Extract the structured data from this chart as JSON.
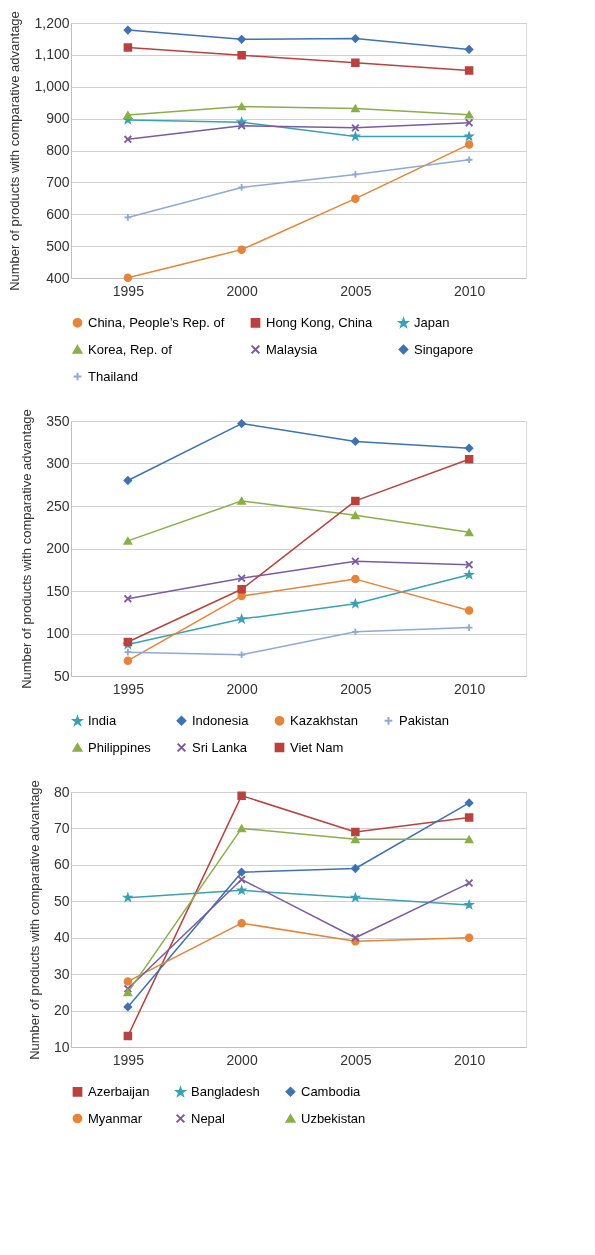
{
  "chart_data": [
    {
      "type": "line",
      "categories": [
        "1995",
        "2000",
        "2005",
        "2010"
      ],
      "ylabel": "Number of products with comparative advantage",
      "ylim": [
        400,
        1200
      ],
      "yticks": [
        400,
        500,
        600,
        700,
        800,
        900,
        {
          "value": 1000,
          "label": "1,000"
        },
        {
          "value": 1100,
          "label": "1,100"
        },
        {
          "value": 1200,
          "label": "1,200"
        }
      ],
      "grid": "y",
      "legend": "bottom",
      "line_style": "solid",
      "series": [
        {
          "name": "China, People’s Rep. of",
          "color": "#e6843a",
          "marker": "circle",
          "values": [
            401,
            489,
            649,
            819
          ]
        },
        {
          "name": "Hong Kong, China",
          "color": "#b84240",
          "marker": "square",
          "values": [
            1123,
            1099,
            1075,
            1051
          ]
        },
        {
          "name": "Japan",
          "color": "#3aa0b4",
          "marker": "star",
          "values": [
            896,
            889,
            844,
            844
          ]
        },
        {
          "name": "Korea, Rep. of",
          "color": "#8aaf4a",
          "marker": "triangle",
          "values": [
            911,
            938,
            932,
            912
          ]
        },
        {
          "name": "Malaysia",
          "color": "#7a5ba0",
          "marker": "cross",
          "values": [
            835,
            878,
            871,
            887
          ]
        },
        {
          "name": "Singapore",
          "color": "#3f72b0",
          "marker": "diamond",
          "values": [
            1178,
            1149,
            1151,
            1117
          ]
        },
        {
          "name": "Thailand",
          "color": "#8fa9d4",
          "marker": "plus",
          "values": [
            590,
            684,
            725,
            771
          ]
        }
      ]
    },
    {
      "type": "line",
      "categories": [
        "1995",
        "2000",
        "2005",
        "2010"
      ],
      "ylabel": "Number of products with comparative advantage",
      "ylim": [
        50,
        350
      ],
      "yticks": [
        50,
        100,
        150,
        200,
        250,
        300,
        350
      ],
      "grid": "y",
      "legend": "bottom",
      "line_style": "solid",
      "series": [
        {
          "name": "India",
          "color": "#3aa0b4",
          "marker": "star",
          "values": [
            87,
            117,
            135,
            169
          ]
        },
        {
          "name": "Indonesia",
          "color": "#3f72b0",
          "marker": "diamond",
          "values": [
            280,
            347,
            326,
            318
          ]
        },
        {
          "name": "Kazakhstan",
          "color": "#e6843a",
          "marker": "circle",
          "values": [
            68,
            144,
            164,
            127
          ]
        },
        {
          "name": "Pakistan",
          "color": "#8fa9d4",
          "marker": "plus",
          "values": [
            78,
            75,
            102,
            107
          ]
        },
        {
          "name": "Philippines",
          "color": "#8aaf4a",
          "marker": "triangle",
          "values": [
            209,
            256,
            239,
            219
          ]
        },
        {
          "name": "Sri Lanka",
          "color": "#7a5ba0",
          "marker": "cross",
          "values": [
            141,
            165,
            185,
            181
          ]
        },
        {
          "name": "Viet Nam",
          "color": "#b84240",
          "marker": "square",
          "values": [
            90,
            152,
            256,
            305
          ]
        }
      ]
    },
    {
      "type": "line",
      "categories": [
        "1995",
        "2000",
        "2005",
        "2010"
      ],
      "ylabel": "Number of products with comparative advantage",
      "ylim": [
        10,
        80
      ],
      "yticks": [
        10,
        20,
        30,
        40,
        50,
        60,
        70,
        80
      ],
      "grid": "y",
      "legend": "bottom",
      "line_style": "solid",
      "series": [
        {
          "name": "Azerbaijan",
          "color": "#b84240",
          "marker": "square",
          "values": [
            13,
            79,
            69,
            73
          ]
        },
        {
          "name": "Bangladesh",
          "color": "#3aa0b4",
          "marker": "star",
          "values": [
            51,
            53,
            51,
            49
          ]
        },
        {
          "name": "Cambodia",
          "color": "#3f72b0",
          "marker": "diamond",
          "values": [
            21,
            58,
            59,
            77
          ]
        },
        {
          "name": "Myanmar",
          "color": "#e6843a",
          "marker": "circle",
          "values": [
            28,
            44,
            39,
            40
          ]
        },
        {
          "name": "Nepal",
          "color": "#7a5ba0",
          "marker": "cross",
          "values": [
            26,
            56,
            40,
            55
          ]
        },
        {
          "name": "Uzbekistan",
          "color": "#8aaf4a",
          "marker": "triangle",
          "values": [
            25,
            70,
            67,
            67
          ]
        }
      ]
    }
  ]
}
